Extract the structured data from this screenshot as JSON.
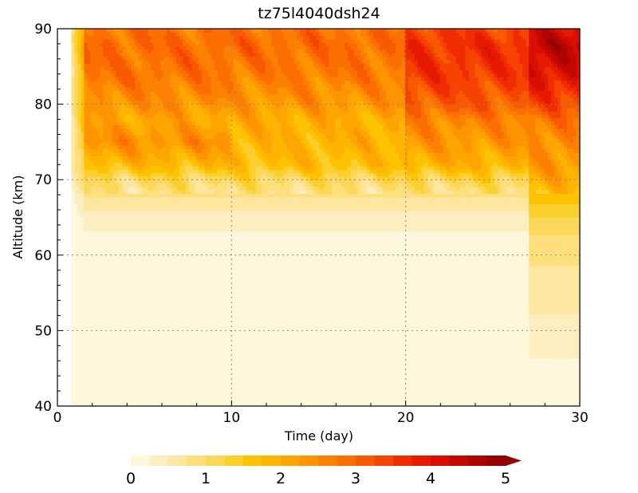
{
  "chart_data": {
    "type": "heatmap",
    "title": "tz75l4040dsh24",
    "xlabel": "Time (day)",
    "ylabel": "Altitude (km)",
    "xlim": [
      0,
      30
    ],
    "ylim": [
      40,
      90
    ],
    "x_ticks": [
      0,
      10,
      20,
      30
    ],
    "y_ticks": [
      40,
      50,
      60,
      70,
      80,
      90
    ],
    "grid": "dotted at major ticks",
    "data_start_day": 0.8,
    "colorbar": {
      "orientation": "horizontal",
      "position": "bottom",
      "levels": [
        0,
        0.25,
        0.5,
        0.75,
        1,
        1.25,
        1.5,
        1.75,
        2,
        2.25,
        2.5,
        2.75,
        3,
        3.25,
        3.5,
        3.75,
        4,
        4.25,
        4.5,
        4.75,
        5
      ],
      "tick_labels": [
        "0",
        "1",
        "2",
        "3",
        "4",
        "5"
      ],
      "extend": "max",
      "colors": [
        "#fef7dc",
        "#fdeec0",
        "#fde69f",
        "#fde07c",
        "#fcd85a",
        "#fcd02c",
        "#fdc300",
        "#feb400",
        "#fea500",
        "#fe9400",
        "#fd8100",
        "#fb6e00",
        "#f85a00",
        "#f54400",
        "#f02d00",
        "#e61a00",
        "#d80e00",
        "#c40800",
        "#ad0500",
        "#930200"
      ]
    },
    "altitude_profile_km": [
      40,
      50,
      60,
      64,
      67,
      70,
      72,
      75,
      78,
      80,
      84,
      88,
      90
    ],
    "profile_values": {
      "day_1_to_10": [
        0.0,
        0.0,
        0.1,
        0.3,
        0.6,
        1.1,
        1.8,
        2.4,
        2.1,
        2.4,
        2.8,
        2.9,
        2.8
      ],
      "day_10_to_20": [
        0.0,
        0.0,
        0.1,
        0.3,
        0.6,
        1.1,
        1.7,
        1.9,
        2.0,
        2.3,
        2.7,
        2.9,
        2.8
      ],
      "day_20_to_27": [
        0.0,
        0.0,
        0.1,
        0.3,
        0.6,
        1.2,
        1.9,
        2.3,
        2.6,
        3.1,
        3.5,
        3.6,
        3.4
      ],
      "day_27_to_30": [
        0.0,
        0.4,
        0.8,
        1.1,
        1.5,
        2.0,
        2.3,
        2.5,
        2.8,
        3.3,
        4.1,
        4.4,
        4.1
      ]
    }
  }
}
